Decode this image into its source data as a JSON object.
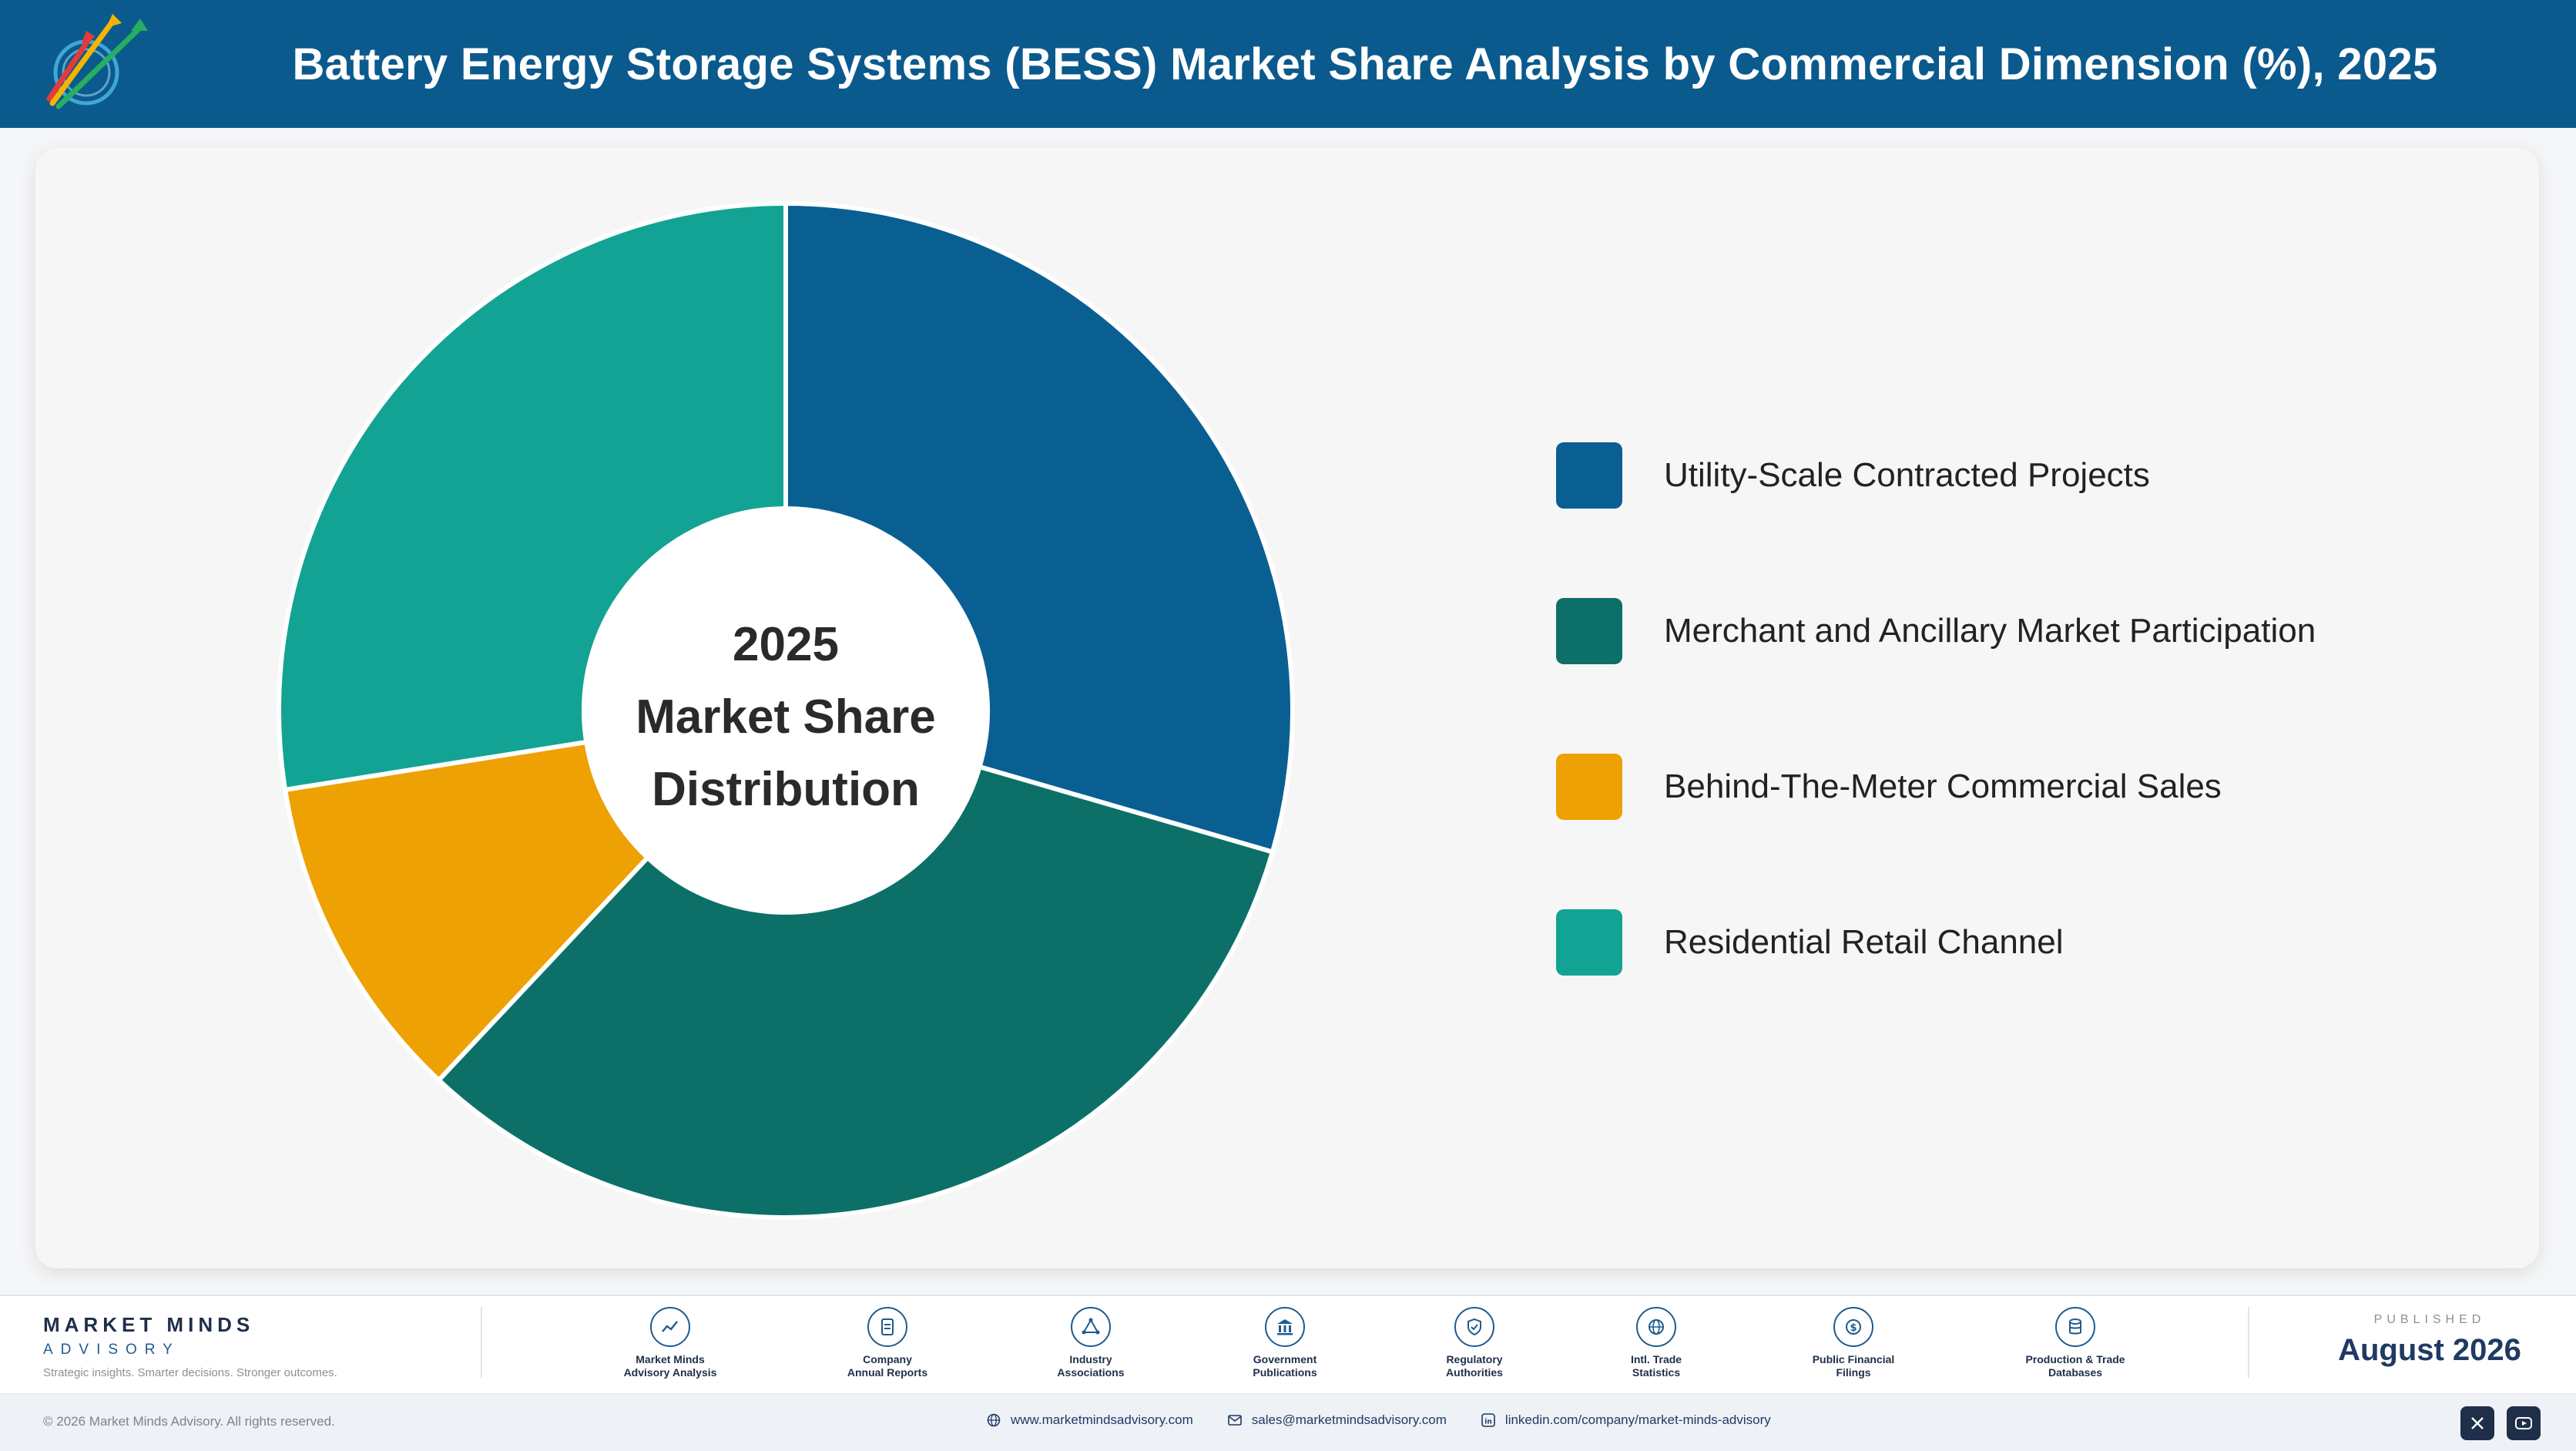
{
  "header": {
    "title": "Battery Energy Storage Systems (BESS) Market Share Analysis by Commercial Dimension (%), 2025"
  },
  "chart_data": {
    "type": "pie",
    "variant": "donut",
    "center_label": [
      "2025",
      "Market Share",
      "Distribution"
    ],
    "categories": [
      "Utility-Scale Contracted Projects",
      "Merchant and Ancillary Market Participation",
      "Behind-The-Meter Commercial Sales",
      "Residential Retail Channel"
    ],
    "values": [
      29.5,
      32.5,
      10.5,
      27.5
    ],
    "colors": [
      "#0a5f92",
      "#0c7068",
      "#eea103",
      "#13a394"
    ],
    "legend_position": "right"
  },
  "footer": {
    "brand_name": "MARKET MINDS",
    "brand_sub": "ADVISORY",
    "tagline": "Strategic insights. Smarter decisions. Stronger outcomes.",
    "sources": [
      {
        "label": "Market Minds\nAdvisory Analysis",
        "icon": "trend-chart-icon"
      },
      {
        "label": "Company\nAnnual Reports",
        "icon": "document-icon"
      },
      {
        "label": "Industry\nAssociations",
        "icon": "network-icon"
      },
      {
        "label": "Government\nPublications",
        "icon": "government-building-icon"
      },
      {
        "label": "Regulatory\nAuthorities",
        "icon": "shield-check-icon"
      },
      {
        "label": "Intl. Trade\nStatistics",
        "icon": "globe-icon"
      },
      {
        "label": "Public Financial\nFilings",
        "icon": "dollar-coin-icon"
      },
      {
        "label": "Production & Trade\nDatabases",
        "icon": "database-icon"
      }
    ],
    "published_label": "PUBLISHED",
    "published_date": "August 2026",
    "copyright": "© 2026 Market Minds Advisory. All rights reserved.",
    "website": "www.marketmindsadvisory.com",
    "email": "sales@marketmindsadvisory.com",
    "linkedin": "linkedin.com/company/market-minds-advisory"
  }
}
